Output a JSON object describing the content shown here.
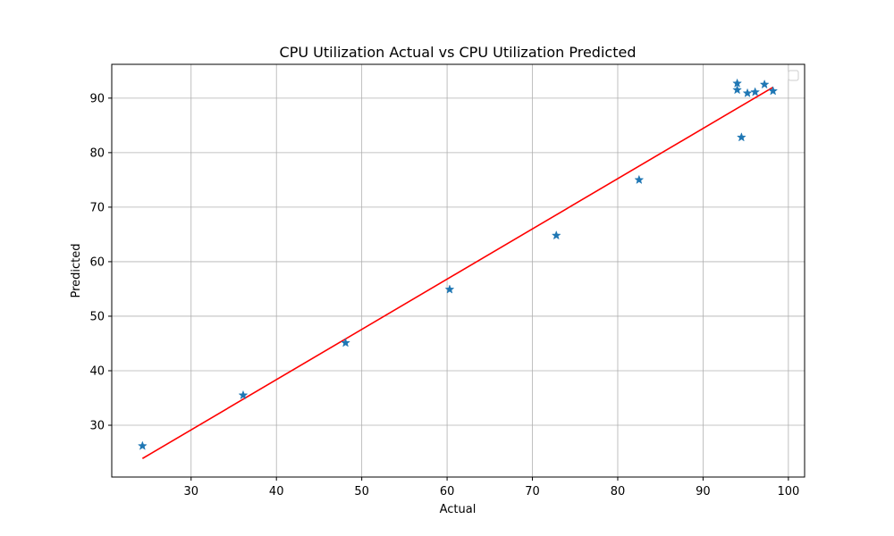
{
  "chart_data": {
    "type": "scatter",
    "title": "CPU Utilization Actual vs CPU Utilization Predicted",
    "xlabel": "Actual",
    "ylabel": "Predicted",
    "xlim": [
      20.7,
      101.9
    ],
    "ylim": [
      20.5,
      96.2
    ],
    "xticks": [
      30,
      40,
      50,
      60,
      70,
      80,
      90,
      100
    ],
    "yticks": [
      30,
      40,
      50,
      60,
      70,
      80,
      90
    ],
    "grid": true,
    "legend": {
      "placement": "top-right",
      "entries": []
    },
    "colors": {
      "points": "#1f77b4",
      "line": "#ff0000",
      "grid": "#b0b0b0"
    },
    "series": [
      {
        "type": "scatter",
        "marker": "star",
        "points": [
          [
            24.3,
            26.2
          ],
          [
            36.1,
            35.5
          ],
          [
            48.1,
            45.1
          ],
          [
            60.3,
            54.9
          ],
          [
            72.8,
            64.8
          ],
          [
            82.5,
            75.0
          ],
          [
            94.0,
            92.7
          ],
          [
            94.0,
            91.5
          ],
          [
            94.5,
            82.8
          ],
          [
            95.2,
            90.9
          ],
          [
            96.1,
            91.1
          ],
          [
            97.2,
            92.5
          ],
          [
            98.2,
            91.3
          ]
        ]
      },
      {
        "type": "line",
        "points": [
          [
            24.3,
            23.9
          ],
          [
            98.2,
            92.0
          ]
        ]
      }
    ]
  }
}
